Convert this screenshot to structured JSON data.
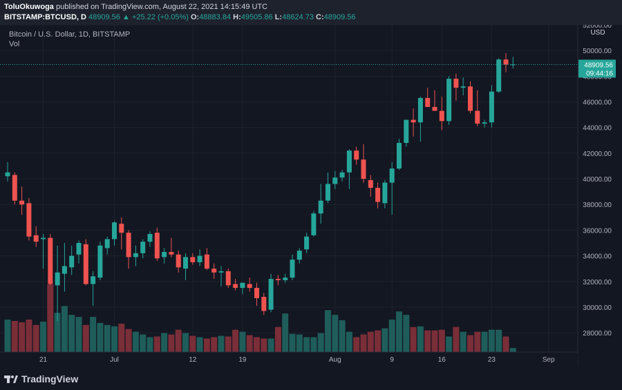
{
  "header": {
    "author": "ToluOkuwoga",
    "published_text": " published on TradingView.com, August 22, 2021 14:15:49 UTC",
    "symbol": "BITSTAMP:BTCUSD, D",
    "last": "48909.56",
    "change": "+25.22 (+0.05%)",
    "open_label": "O:",
    "open": "48883.84",
    "high_label": "H:",
    "high": "49505.86",
    "low_label": "L:",
    "low": "48624.73",
    "close_label": "C:",
    "close": "48909.56"
  },
  "legend": {
    "title": "Bitcoin / U.S. Dollar, 1D, BITSTAMP",
    "vol": "Vol"
  },
  "footer": {
    "brand": "TradingView"
  },
  "colors": {
    "up": "#26a69a",
    "down": "#ef5350",
    "vol_up": "#1f5d5a",
    "vol_down": "#7a2e38",
    "grid": "#1e222d",
    "bg": "#131722",
    "axis_text": "#b2b5be",
    "price_tag": "#26a69a"
  },
  "chart_data": {
    "type": "candlestick",
    "currency": "USD",
    "ylim": [
      26500,
      52000
    ],
    "yticks": [
      28000,
      30000,
      32000,
      34000,
      36000,
      38000,
      40000,
      42000,
      44000,
      46000,
      48000,
      50000,
      52000
    ],
    "ytick_labels": [
      "28000.00",
      "30000.00",
      "32000.00",
      "34000.00",
      "36000.00",
      "38000.00",
      "40000.00",
      "42000.00",
      "44000.00",
      "46000.00",
      "48000.00",
      "50000.00",
      "52000.00"
    ],
    "xticks": [
      {
        "index": 5,
        "label": "21"
      },
      {
        "index": 15,
        "label": "Jul"
      },
      {
        "index": 26,
        "label": "12"
      },
      {
        "index": 33,
        "label": "19"
      },
      {
        "index": 46,
        "label": "Aug"
      },
      {
        "index": 54,
        "label": "9"
      },
      {
        "index": 61,
        "label": "16"
      },
      {
        "index": 68,
        "label": "23"
      },
      {
        "index": 76,
        "label": "Sep"
      }
    ],
    "last_price": "48909.56",
    "countdown": "09:44:16",
    "candles": [
      {
        "o": 40200,
        "h": 41300,
        "l": 39800,
        "c": 40500
      },
      {
        "o": 40300,
        "h": 40500,
        "l": 38000,
        "c": 38300
      },
      {
        "o": 38300,
        "h": 39400,
        "l": 37200,
        "c": 38000
      },
      {
        "o": 38100,
        "h": 38500,
        "l": 35200,
        "c": 35500
      },
      {
        "o": 35600,
        "h": 36300,
        "l": 34700,
        "c": 35100
      },
      {
        "o": 35300,
        "h": 35700,
        "l": 33000,
        "c": 35400
      },
      {
        "o": 35400,
        "h": 35700,
        "l": 31700,
        "c": 31800
      },
      {
        "o": 31700,
        "h": 34800,
        "l": 28900,
        "c": 32700
      },
      {
        "o": 32600,
        "h": 35000,
        "l": 31200,
        "c": 33200
      },
      {
        "o": 33100,
        "h": 34800,
        "l": 32500,
        "c": 34000
      },
      {
        "o": 34100,
        "h": 35200,
        "l": 33400,
        "c": 35000
      },
      {
        "o": 34900,
        "h": 35300,
        "l": 31700,
        "c": 31800
      },
      {
        "o": 31800,
        "h": 32800,
        "l": 30100,
        "c": 32400
      },
      {
        "o": 32300,
        "h": 35100,
        "l": 32100,
        "c": 34800
      },
      {
        "o": 34600,
        "h": 35500,
        "l": 34100,
        "c": 35300
      },
      {
        "o": 35300,
        "h": 36700,
        "l": 34800,
        "c": 36600
      },
      {
        "o": 36500,
        "h": 37000,
        "l": 34500,
        "c": 35800
      },
      {
        "o": 35800,
        "h": 36000,
        "l": 33000,
        "c": 33900
      },
      {
        "o": 33900,
        "h": 34800,
        "l": 33200,
        "c": 34200
      },
      {
        "o": 34200,
        "h": 35300,
        "l": 33800,
        "c": 35100
      },
      {
        "o": 35100,
        "h": 35900,
        "l": 34700,
        "c": 35700
      },
      {
        "o": 35800,
        "h": 36200,
        "l": 33600,
        "c": 33800
      },
      {
        "o": 33900,
        "h": 34600,
        "l": 33400,
        "c": 34300
      },
      {
        "o": 34300,
        "h": 35400,
        "l": 33900,
        "c": 34100
      },
      {
        "o": 34100,
        "h": 34400,
        "l": 32700,
        "c": 33100
      },
      {
        "o": 33000,
        "h": 34200,
        "l": 32100,
        "c": 33900
      },
      {
        "o": 33900,
        "h": 34200,
        "l": 33300,
        "c": 33500
      },
      {
        "o": 33500,
        "h": 34500,
        "l": 33200,
        "c": 34000
      },
      {
        "o": 34100,
        "h": 34600,
        "l": 32900,
        "c": 33000
      },
      {
        "o": 33000,
        "h": 33400,
        "l": 32200,
        "c": 32700
      },
      {
        "o": 32700,
        "h": 33200,
        "l": 31600,
        "c": 32800
      },
      {
        "o": 32800,
        "h": 33000,
        "l": 31500,
        "c": 31700
      },
      {
        "o": 31800,
        "h": 32200,
        "l": 31300,
        "c": 31500
      },
      {
        "o": 31500,
        "h": 31900,
        "l": 31000,
        "c": 31900
      },
      {
        "o": 31800,
        "h": 32300,
        "l": 31200,
        "c": 31500
      },
      {
        "o": 31500,
        "h": 31900,
        "l": 30100,
        "c": 30700
      },
      {
        "o": 30800,
        "h": 31100,
        "l": 29400,
        "c": 29700
      },
      {
        "o": 29800,
        "h": 32600,
        "l": 29600,
        "c": 32200
      },
      {
        "o": 32200,
        "h": 32500,
        "l": 31700,
        "c": 32100
      },
      {
        "o": 32100,
        "h": 32600,
        "l": 31900,
        "c": 32300
      },
      {
        "o": 32300,
        "h": 34100,
        "l": 32100,
        "c": 33700
      },
      {
        "o": 33700,
        "h": 34600,
        "l": 33400,
        "c": 34400
      },
      {
        "o": 34500,
        "h": 35800,
        "l": 34200,
        "c": 35500
      },
      {
        "o": 35600,
        "h": 37500,
        "l": 35500,
        "c": 37300
      },
      {
        "o": 37300,
        "h": 39600,
        "l": 36500,
        "c": 38300
      },
      {
        "o": 38300,
        "h": 40500,
        "l": 38100,
        "c": 39600
      },
      {
        "o": 39600,
        "h": 40600,
        "l": 39200,
        "c": 40100
      },
      {
        "o": 40100,
        "h": 40700,
        "l": 39800,
        "c": 40500
      },
      {
        "o": 40500,
        "h": 42300,
        "l": 39200,
        "c": 42200
      },
      {
        "o": 42200,
        "h": 42500,
        "l": 41100,
        "c": 41500
      },
      {
        "o": 41500,
        "h": 42700,
        "l": 39700,
        "c": 40000
      },
      {
        "o": 39900,
        "h": 40300,
        "l": 38600,
        "c": 39300
      },
      {
        "o": 39300,
        "h": 39700,
        "l": 37700,
        "c": 38200
      },
      {
        "o": 38100,
        "h": 39900,
        "l": 37700,
        "c": 39700
      },
      {
        "o": 39700,
        "h": 41300,
        "l": 37200,
        "c": 40800
      },
      {
        "o": 40800,
        "h": 43100,
        "l": 40700,
        "c": 42800
      },
      {
        "o": 42800,
        "h": 44600,
        "l": 42500,
        "c": 44600
      },
      {
        "o": 44600,
        "h": 45500,
        "l": 43300,
        "c": 44400
      },
      {
        "o": 44400,
        "h": 46400,
        "l": 42900,
        "c": 46300
      },
      {
        "o": 46300,
        "h": 47100,
        "l": 45700,
        "c": 45600
      },
      {
        "o": 45600,
        "h": 46900,
        "l": 45300,
        "c": 45300
      },
      {
        "o": 45300,
        "h": 46400,
        "l": 43800,
        "c": 44500
      },
      {
        "o": 44500,
        "h": 48000,
        "l": 44200,
        "c": 47800
      },
      {
        "o": 47800,
        "h": 48200,
        "l": 46100,
        "c": 47100
      },
      {
        "o": 47100,
        "h": 47900,
        "l": 46500,
        "c": 47200
      },
      {
        "o": 47200,
        "h": 47600,
        "l": 45100,
        "c": 45300
      },
      {
        "o": 45300,
        "h": 46900,
        "l": 44100,
        "c": 44300
      },
      {
        "o": 44300,
        "h": 44600,
        "l": 44000,
        "c": 44400
      },
      {
        "o": 44400,
        "h": 47300,
        "l": 44000,
        "c": 46800
      },
      {
        "o": 46800,
        "h": 49400,
        "l": 46700,
        "c": 49300
      },
      {
        "o": 49300,
        "h": 49800,
        "l": 48300,
        "c": 48900
      },
      {
        "o": 48880,
        "h": 49500,
        "l": 48600,
        "c": 48910
      }
    ],
    "volume_scale_max": 100,
    "volumes": [
      48,
      46,
      44,
      48,
      40,
      45,
      100,
      58,
      68,
      55,
      52,
      40,
      52,
      43,
      40,
      38,
      42,
      34,
      30,
      26,
      22,
      23,
      28,
      26,
      33,
      28,
      24,
      22,
      20,
      22,
      24,
      23,
      33,
      30,
      25,
      22,
      20,
      20,
      37,
      57,
      27,
      26,
      22,
      22,
      28,
      62,
      55,
      47,
      30,
      22,
      26,
      30,
      32,
      35,
      48,
      60,
      55,
      37,
      38,
      32,
      32,
      33,
      23,
      37,
      30,
      25,
      30,
      30,
      33,
      33,
      23,
      6
    ]
  }
}
